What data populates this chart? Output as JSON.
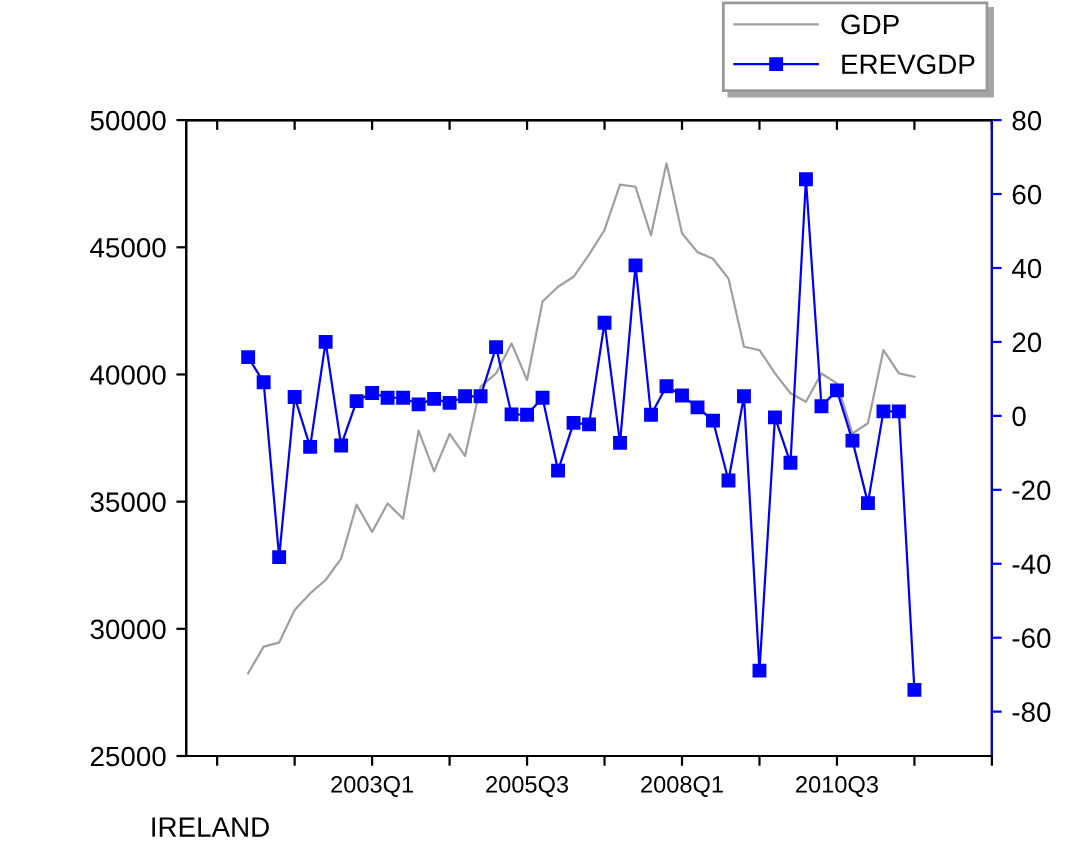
{
  "chart_data": {
    "type": "line",
    "annotations": [
      "IRELAND"
    ],
    "categories": [
      null,
      null,
      null,
      null,
      null,
      null,
      null,
      null,
      null,
      null,
      null,
      null,
      "2003Q1",
      null,
      null,
      null,
      null,
      null,
      null,
      null,
      null,
      null,
      "2005Q3",
      null,
      null,
      null,
      null,
      null,
      null,
      null,
      null,
      null,
      "2008Q1",
      null,
      null,
      null,
      null,
      null,
      null,
      null,
      null,
      null,
      "2010Q3",
      null,
      null,
      null,
      null,
      null,
      null,
      null,
      null,
      null,
      null
    ],
    "series": [
      {
        "name": "GDP",
        "color": "#a0a0a0",
        "marker": "none",
        "values": [
          null,
          null,
          null,
          null,
          28250,
          29300,
          29460,
          30740,
          31390,
          31920,
          32760,
          34880,
          33810,
          34930,
          34330,
          37790,
          36190,
          37660,
          36800,
          39520,
          40040,
          41220,
          39780,
          42870,
          43450,
          43840,
          44710,
          45680,
          47460,
          47380,
          45470,
          48300,
          45550,
          44810,
          44550,
          43770,
          41090,
          40960,
          40040,
          39260,
          38930,
          40040,
          39650,
          37680,
          38080,
          40960,
          40040,
          39910,
          null,
          null,
          null,
          null,
          null
        ]
      },
      {
        "name": "EREVGDP",
        "color": "#0000ff",
        "axis": "y2",
        "marker": "square",
        "values": [
          null,
          null,
          null,
          null,
          15.9,
          9.1,
          -38.2,
          5.1,
          -8.4,
          20.0,
          -8.0,
          4.0,
          6.2,
          4.9,
          4.9,
          3.1,
          4.6,
          3.5,
          5.3,
          5.3,
          18.6,
          0.4,
          0.3,
          4.9,
          -14.8,
          -1.9,
          -2.3,
          25.2,
          -7.3,
          40.7,
          0.3,
          8.0,
          5.5,
          2.3,
          -1.3,
          -17.5,
          5.3,
          -68.9,
          -0.4,
          -12.7,
          64.0,
          2.6,
          6.9,
          -6.7,
          -23.6,
          1.2,
          1.2,
          -74.1,
          null,
          null,
          null,
          null,
          null
        ]
      }
    ],
    "ylim": [
      25000,
      50000
    ],
    "yticks": [
      25000,
      30000,
      35000,
      40000,
      45000,
      50000
    ],
    "y2lim": [
      -92,
      80
    ],
    "y2ticks": [
      -80,
      -60,
      -40,
      -20,
      0,
      20,
      40,
      60,
      80
    ],
    "line_style": "solid",
    "grid": false,
    "legend": "top right"
  }
}
